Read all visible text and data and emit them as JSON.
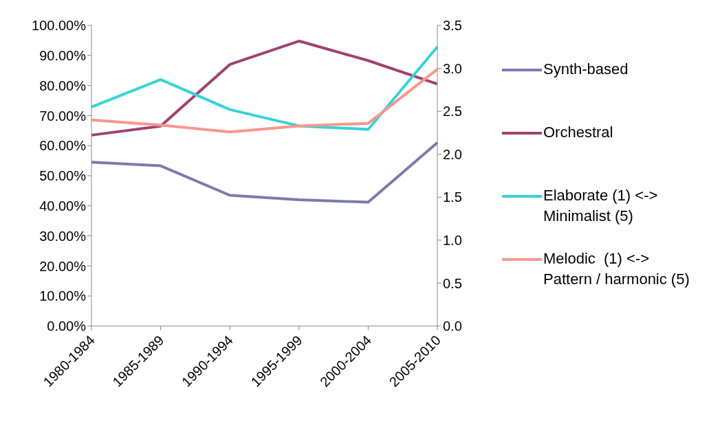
{
  "chart_data": {
    "type": "line",
    "categories": [
      "1980-1984",
      "1985-1989",
      "1990-1994",
      "1995-1999",
      "2000-2004",
      "2005-2010"
    ],
    "series": [
      {
        "name": "Synth-based",
        "color": "#7b7bab",
        "values": [
          54.5,
          53.3,
          43.5,
          42,
          41.2,
          61
        ]
      },
      {
        "name": "Orchestral",
        "color": "#a0426f",
        "values": [
          63.5,
          66.5,
          87,
          94.8,
          88.3,
          80.5
        ]
      },
      {
        "name": "Elaborate (1) <-> Minimalist (5)",
        "color": "#37d3d6",
        "axis": "y2",
        "values": [
          2.55,
          2.87,
          2.52,
          2.33,
          2.29,
          3.25
        ]
      },
      {
        "name": "Melodic  (1) <-> Pattern / harmonic (5)",
        "color": "#fb968d",
        "axis": "y2",
        "values": [
          2.4,
          2.34,
          2.26,
          2.33,
          2.36,
          2.99
        ]
      }
    ],
    "ylim": [
      0,
      100
    ],
    "yticks": [
      {
        "value": 0,
        "label": "0.00%"
      },
      {
        "value": 10,
        "label": "10.00%"
      },
      {
        "value": 20,
        "label": "20.00%"
      },
      {
        "value": 30,
        "label": "30.00%"
      },
      {
        "value": 40,
        "label": "40.00%"
      },
      {
        "value": 50,
        "label": "50.00%"
      },
      {
        "value": 60,
        "label": "60.00%"
      },
      {
        "value": 70,
        "label": "70.00%"
      },
      {
        "value": 80,
        "label": "80.00%"
      },
      {
        "value": 90,
        "label": "90.00%"
      },
      {
        "value": 100,
        "label": "100.00%"
      }
    ],
    "y2lim": [
      0,
      3.5
    ],
    "y2ticks": [
      {
        "value": 0,
        "label": "0.0"
      },
      0.5,
      {
        "value": 1,
        "label": "1.0"
      },
      1.5,
      {
        "value": 2,
        "label": "2.0"
      },
      2.5,
      {
        "value": 3,
        "label": "3.0"
      },
      3.5
    ],
    "legend": "right",
    "grid": false,
    "marker": "none",
    "line_style": "solid"
  }
}
